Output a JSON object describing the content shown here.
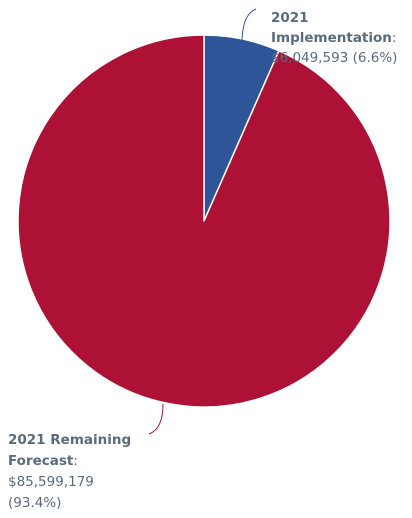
{
  "chart_data": {
    "type": "pie",
    "title": "",
    "slices": [
      {
        "label": "2021 Implementation",
        "value": 6049593,
        "value_text": "$6,049,593",
        "percent": 6.6,
        "percent_text": "(6.6%)",
        "color": "#2e5597"
      },
      {
        "label": "2021 Remaining Forecast",
        "value": 85599179,
        "value_text": "$85,599,179",
        "percent": 93.4,
        "percent_text": "(93.4%)",
        "color": "#ad1236"
      }
    ],
    "legend": "none",
    "data_labels": "outside with leader lines"
  },
  "colors": {
    "label_text": "#5a6b80",
    "leader_line": "#2e5597",
    "leader_line_alt": "#ad1236",
    "slice_border": "#ffffff"
  }
}
